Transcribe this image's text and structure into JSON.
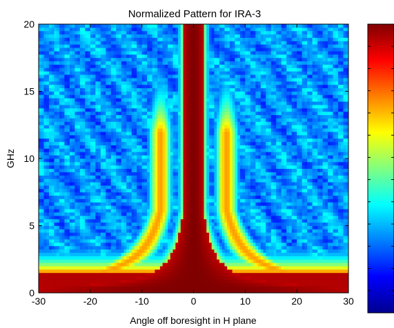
{
  "chart_data": {
    "type": "heatmap",
    "title": "Normalized Pattern for IRA-3",
    "xlabel": "Angle off boresight in H plane",
    "ylabel": "GHz",
    "xlim": [
      -30,
      30
    ],
    "ylim": [
      0,
      20
    ],
    "x_ticks": [
      "-30",
      "-20",
      "-10",
      "0",
      "10",
      "20",
      "30"
    ],
    "y_ticks": [
      "0",
      "5",
      "10",
      "15",
      "20"
    ],
    "colormap": "jet",
    "colorbar": "right, unlabeled",
    "grid": false,
    "value_range": [
      0,
      1
    ],
    "features": {
      "main_beam": "red band centered at 0 deg, narrowing with frequency",
      "side_lobes": "yellow arcs flaring outward below ~8 GHz",
      "background": "blue-cyan mottled noise above ~8 GHz"
    }
  }
}
